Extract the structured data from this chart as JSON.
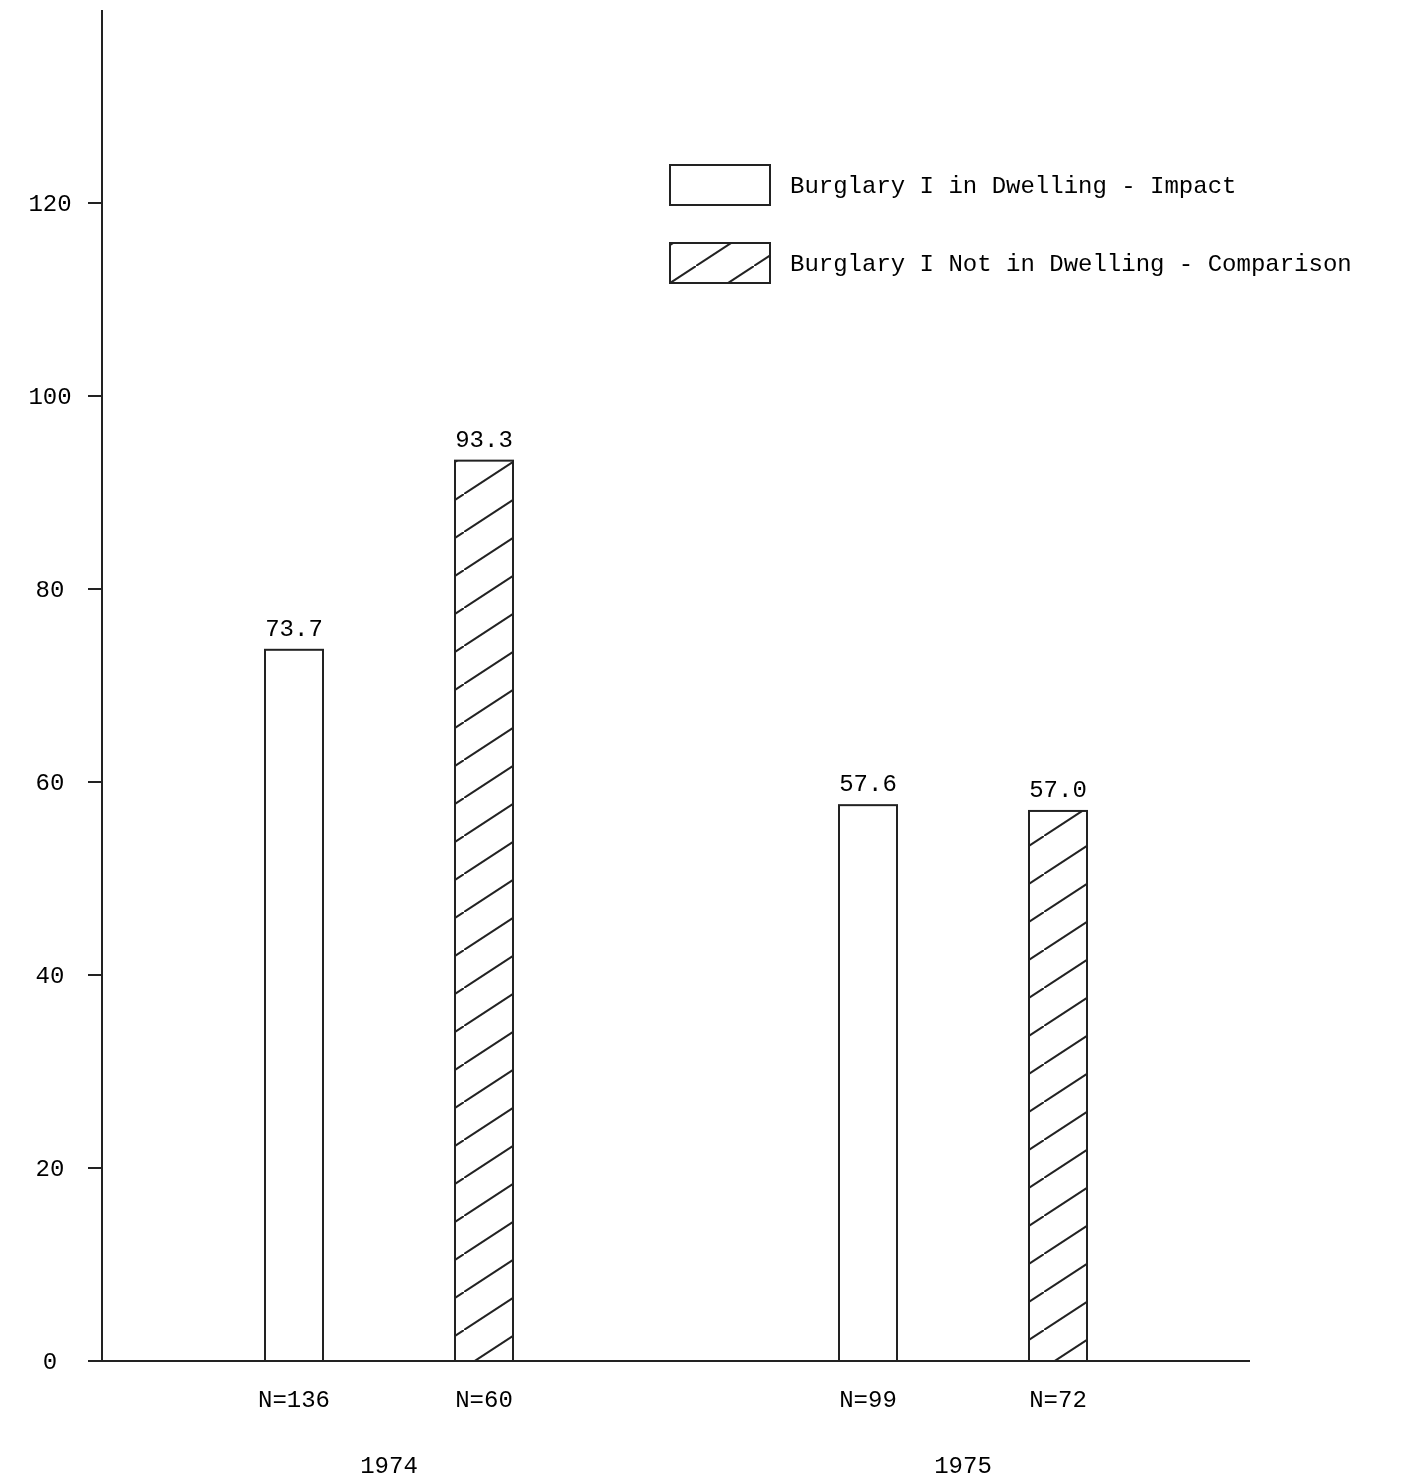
{
  "chart_data": {
    "type": "bar",
    "categories": [
      "1974",
      "1975"
    ],
    "series": [
      {
        "name": "Burglary I in Dwelling - Impact",
        "color": "#ffffff",
        "values": [
          73.7,
          57.6
        ],
        "value_labels": [
          "73.7",
          "57.6"
        ]
      },
      {
        "name": "Burglary I Not in Dwelling - Comparison",
        "color": "#222222",
        "values": [
          93.3,
          57.0
        ],
        "value_labels": [
          "93.3",
          "57.0"
        ]
      }
    ],
    "ylim": [
      0,
      140
    ],
    "yticks": [
      0,
      20,
      40,
      60,
      80,
      100,
      120
    ],
    "legend": "top right",
    "grid": false,
    "annotations": [
      "N=136",
      "N=60",
      "N=99",
      "N=72"
    ]
  }
}
